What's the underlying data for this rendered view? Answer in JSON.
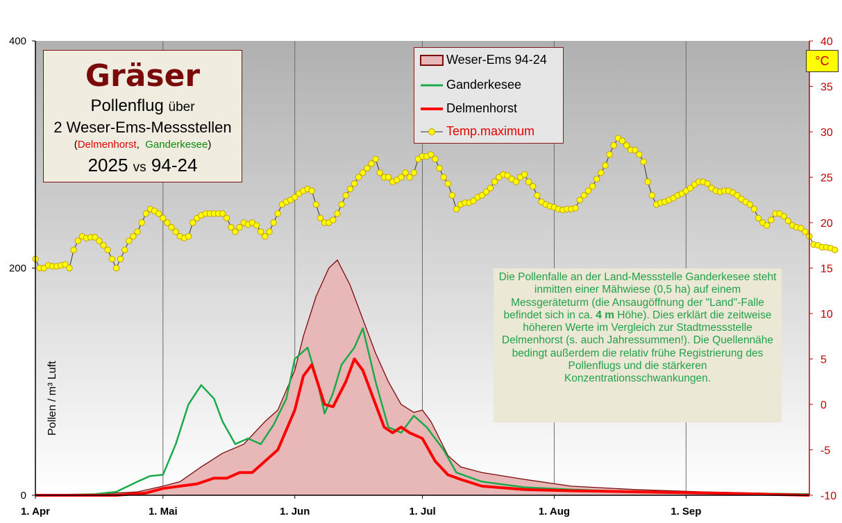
{
  "title_box": {
    "title": "Gräser",
    "line2_a": "Pollenflug",
    "line2_b": "über",
    "line3": "2 Weser-Ems-Messstellen",
    "line4_open": "(",
    "line4_a": "Delmenhorst",
    "line4_sep": ",",
    "line4_b": "Ganderkesee",
    "line4_close": ")",
    "line5_a": "2025",
    "line5_b": "vs",
    "line5_c": "94-24"
  },
  "legend": {
    "items": [
      "Weser-Ems 94-24",
      "Ganderkesee",
      "Delmenhorst",
      "Temp.maximum"
    ]
  },
  "unit_label": "°C",
  "note": {
    "part1": "Die Pollenfalle an der Land-Messstelle Ganderkesee steht inmitten einer Mähwiese (0,5 ha) auf einem Messgeräteturm (die Ansaugöffnung der \"Land\"-Falle befindet sich in ca. ",
    "bold": "4 m",
    "part2": " Höhe). Dies erklärt die zeitweise höheren Werte im Vergleich zur Stadtmessstelle Delmenhorst (s. auch Jahressummen!). Die Quellennähe bedingt außerdem die relativ frühe Registrierung des Pollenflugs und die stärkeren Konzentrationsschwankungen."
  },
  "colors": {
    "plot_bg_top": "#b0b0b0",
    "plot_bg_bottom": "#ffffff",
    "area_fill": "#e8b8b8",
    "area_line": "#7a0a0a",
    "ganderkesee": "#1aaa4a",
    "delmenhorst": "#ff0000",
    "temp_line": "#333333",
    "temp_marker": "#ffff00",
    "right_axis": "#c00000"
  },
  "chart_data": {
    "type": "line",
    "x_unit": "day of year (2025)",
    "x_start": "2025-04-01",
    "x_end": "2025-09-30",
    "xlim": [
      "2025-04-01",
      "2025-09-30"
    ],
    "x_tick_labels": [
      "1. Apr",
      "1. Mai",
      "1. Jun",
      "1. Jul",
      "1. Aug",
      "1. Sep"
    ],
    "x_tick_dates": [
      "2025-04-01",
      "2025-05-01",
      "2025-06-01",
      "2025-07-01",
      "2025-08-01",
      "2025-09-01"
    ],
    "ylabel": "Pollen / m³ Luft",
    "ylim": [
      0,
      400
    ],
    "y_ticks": [
      0,
      200,
      400
    ],
    "y2label": "°C",
    "y2lim": [
      -10,
      40
    ],
    "y2_ticks": [
      -10,
      -5,
      0,
      5,
      10,
      15,
      20,
      25,
      30,
      35,
      40
    ],
    "grid": "vertical at month starts",
    "series": [
      {
        "name": "Weser-Ems 94-24",
        "type": "area",
        "x": [
          "2025-04-01",
          "2025-04-15",
          "2025-04-25",
          "2025-05-01",
          "2025-05-05",
          "2025-05-10",
          "2025-05-15",
          "2025-05-20",
          "2025-05-25",
          "2025-05-28",
          "2025-06-01",
          "2025-06-03",
          "2025-06-06",
          "2025-06-09",
          "2025-06-11",
          "2025-06-14",
          "2025-06-17",
          "2025-06-20",
          "2025-06-23",
          "2025-06-26",
          "2025-06-29",
          "2025-07-01",
          "2025-07-03",
          "2025-07-07",
          "2025-07-10",
          "2025-07-15",
          "2025-07-25",
          "2025-08-05",
          "2025-08-20",
          "2025-09-05",
          "2025-09-30"
        ],
        "y": [
          0,
          1,
          3,
          8,
          12,
          25,
          37,
          45,
          65,
          75,
          110,
          140,
          175,
          200,
          207,
          185,
          155,
          125,
          100,
          80,
          73,
          75,
          65,
          35,
          25,
          20,
          14,
          8,
          5,
          3,
          1
        ]
      },
      {
        "name": "Ganderkesee",
        "type": "line",
        "x": [
          "2025-04-01",
          "2025-04-15",
          "2025-04-20",
          "2025-04-25",
          "2025-04-28",
          "2025-05-01",
          "2025-05-04",
          "2025-05-07",
          "2025-05-10",
          "2025-05-13",
          "2025-05-15",
          "2025-05-18",
          "2025-05-21",
          "2025-05-24",
          "2025-05-27",
          "2025-05-30",
          "2025-06-01",
          "2025-06-04",
          "2025-06-06",
          "2025-06-08",
          "2025-06-10",
          "2025-06-12",
          "2025-06-15",
          "2025-06-17",
          "2025-06-20",
          "2025-06-23",
          "2025-06-26",
          "2025-06-29",
          "2025-07-02",
          "2025-07-06",
          "2025-07-09",
          "2025-07-15",
          "2025-07-25",
          "2025-08-05",
          "2025-08-20",
          "2025-09-05",
          "2025-09-30"
        ],
        "y": [
          0,
          1,
          3,
          12,
          17,
          18,
          45,
          80,
          97,
          85,
          65,
          45,
          50,
          45,
          62,
          85,
          120,
          130,
          105,
          72,
          90,
          115,
          130,
          147,
          100,
          60,
          55,
          70,
          60,
          40,
          20,
          12,
          7,
          5,
          3,
          2,
          1
        ]
      },
      {
        "name": "Delmenhorst",
        "type": "line",
        "x": [
          "2025-04-01",
          "2025-04-20",
          "2025-04-27",
          "2025-05-01",
          "2025-05-05",
          "2025-05-09",
          "2025-05-13",
          "2025-05-16",
          "2025-05-19",
          "2025-05-22",
          "2025-05-25",
          "2025-05-28",
          "2025-06-01",
          "2025-06-03",
          "2025-06-05",
          "2025-06-08",
          "2025-06-10",
          "2025-06-13",
          "2025-06-15",
          "2025-06-17",
          "2025-06-20",
          "2025-06-22",
          "2025-06-24",
          "2025-06-26",
          "2025-06-28",
          "2025-07-01",
          "2025-07-04",
          "2025-07-07",
          "2025-07-10",
          "2025-07-15",
          "2025-07-25",
          "2025-08-05",
          "2025-08-20",
          "2025-09-05",
          "2025-09-30"
        ],
        "y": [
          0,
          0,
          2,
          6,
          8,
          10,
          15,
          15,
          20,
          20,
          30,
          40,
          75,
          105,
          115,
          80,
          78,
          100,
          120,
          110,
          80,
          60,
          55,
          60,
          55,
          50,
          30,
          18,
          14,
          8,
          5,
          4,
          3,
          2,
          0
        ]
      },
      {
        "name": "Temp.maximum",
        "axis": "right",
        "x_start": "2025-04-01",
        "values": [
          16,
          15,
          15,
          15.3,
          15.2,
          15.2,
          15.3,
          15.4,
          15,
          17,
          18,
          18.5,
          18.3,
          18.4,
          18.4,
          18,
          17.5,
          17,
          16,
          15,
          16,
          17,
          18,
          18.5,
          19,
          20,
          21,
          21.5,
          21.3,
          21,
          20.5,
          20,
          19.5,
          19,
          18.5,
          18.3,
          18.5,
          20,
          20.5,
          20.8,
          21,
          21,
          21,
          21,
          21,
          20.5,
          19.5,
          19,
          19.5,
          20,
          19.8,
          20,
          19.7,
          19,
          18.5,
          19,
          20,
          21,
          22,
          22.3,
          22.5,
          22.8,
          23.2,
          23.5,
          23.7,
          23.5,
          22,
          20.5,
          20,
          20,
          20.3,
          21,
          22,
          23,
          23.7,
          24.3,
          25,
          25.5,
          26,
          26.5,
          27,
          25.5,
          25,
          25,
          24.5,
          24.7,
          25,
          25.5,
          25,
          25.5,
          27,
          27.3,
          27.3,
          27.5,
          27,
          26,
          25,
          24.3,
          23,
          21.5,
          22,
          22.2,
          22.2,
          22.4,
          22.8,
          23,
          23.4,
          23.8,
          24.5,
          25,
          25.3,
          25.2,
          24.8,
          24.5,
          25,
          25.3,
          24.5,
          24,
          23,
          22.3,
          22,
          21.8,
          21.7,
          21.5,
          21.4,
          21.5,
          21.5,
          21.6,
          22.5,
          23,
          23.5,
          24,
          24.8,
          25.5,
          26.3,
          27.5,
          28.5,
          29.3,
          29,
          28.5,
          28,
          28,
          27.5,
          26.7,
          24.5,
          23,
          22,
          22.2,
          22.3,
          22.5,
          22.7,
          23,
          23.2,
          23.5,
          23.8,
          24.2,
          24.5,
          24.5,
          24.3,
          23.8,
          23.5,
          23.4,
          23.5,
          23.5,
          23.3,
          23,
          22.6,
          22.3,
          22,
          21.5,
          20.5,
          20,
          19.7,
          20.3,
          21,
          21,
          20.7,
          20.2,
          19.7,
          19.5,
          19.4,
          19,
          18.5,
          17.6,
          17.5,
          17.3,
          17.3,
          17.2,
          17
        ]
      }
    ],
    "legend_position": "top-center"
  }
}
